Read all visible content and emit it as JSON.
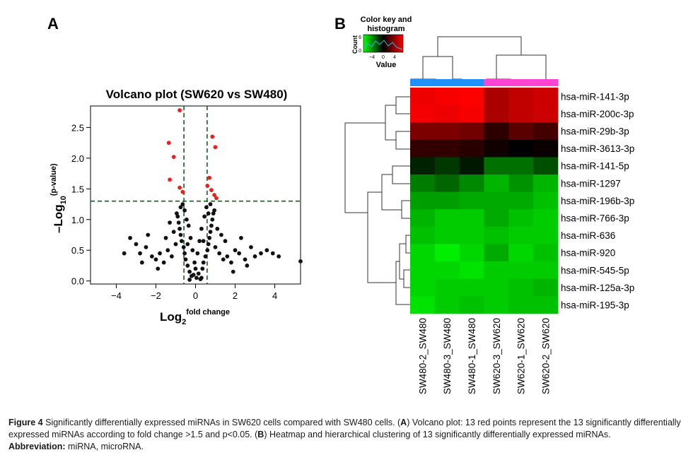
{
  "panel_labels": {
    "a": "A",
    "b": "B"
  },
  "colors": {
    "sig": "#e8201e",
    "nonsig": "#111111",
    "threshold_line": "#1e5a1e",
    "sw480_bar": "#1e90ff",
    "sw620_bar": "#ff44d4"
  },
  "caption": {
    "figure_label": "Figure 4",
    "line1_text": "Significantly differentially expressed miRNAs in SW620 cells compared with SW480 cells. (",
    "line1_a": "A",
    "line1_rest": ") Volcano plot: 13 red points represent the 13 significantly differentially",
    "line2_text": "expressed miRNAs according to fold change >1.5 and p<0.05. (",
    "line2_b": "B",
    "line2_rest": ") Heatmap and hierarchical clustering of 13 significantly differentially expressed miRNAs.",
    "abbrev_label": "Abbreviation:",
    "abbrev_text": "miRNA, microRNA."
  },
  "chart_data": [
    {
      "type": "scatter",
      "title": "Volcano plot (SW620 vs SW480)",
      "xlabel_main": "Log",
      "xlabel_sub": "2",
      "xlabel_sup": "fold change",
      "ylabel_main": "–Log",
      "ylabel_sub": "10",
      "ylabel_sup": "(p-value)",
      "xlim": [
        -5.3,
        5.3
      ],
      "ylim": [
        -0.05,
        2.85
      ],
      "xticks": [
        -4,
        -2,
        0,
        2,
        4
      ],
      "yticks": [
        0.0,
        0.5,
        1.0,
        1.5,
        2.0,
        2.5
      ],
      "ytick_labels": [
        "0.0",
        "0.5",
        "1.0",
        "1.5",
        "2.0",
        "2.5"
      ],
      "threshold_x": [
        -0.585,
        0.585
      ],
      "threshold_y": 1.3,
      "significant_points": [
        {
          "x": -0.8,
          "y": 2.78
        },
        {
          "x": -1.35,
          "y": 2.25
        },
        {
          "x": -1.1,
          "y": 2.02
        },
        {
          "x": -1.3,
          "y": 1.65
        },
        {
          "x": -0.8,
          "y": 1.52
        },
        {
          "x": 0.85,
          "y": 2.35
        },
        {
          "x": 1.0,
          "y": 2.18
        },
        {
          "x": 0.7,
          "y": 1.68
        },
        {
          "x": 0.8,
          "y": 1.48
        },
        {
          "x": 0.95,
          "y": 1.4
        },
        {
          "x": 0.6,
          "y": 1.55
        },
        {
          "x": -0.65,
          "y": 1.45
        },
        {
          "x": 1.05,
          "y": 1.35
        }
      ],
      "nonsignificant_points": [
        {
          "x": 0.05,
          "y": 0.05
        },
        {
          "x": -0.1,
          "y": 0.1
        },
        {
          "x": 0.15,
          "y": 0.12
        },
        {
          "x": -0.2,
          "y": 0.08
        },
        {
          "x": 0.25,
          "y": 0.03
        },
        {
          "x": -0.3,
          "y": 0.15
        },
        {
          "x": 0.35,
          "y": 0.2
        },
        {
          "x": -0.4,
          "y": 0.25
        },
        {
          "x": 0.4,
          "y": 0.3
        },
        {
          "x": -0.5,
          "y": 0.35
        },
        {
          "x": 0.5,
          "y": 0.4
        },
        {
          "x": -0.55,
          "y": 0.45
        },
        {
          "x": 0.6,
          "y": 0.5
        },
        {
          "x": -0.6,
          "y": 0.55
        },
        {
          "x": 0.65,
          "y": 0.6
        },
        {
          "x": -0.7,
          "y": 0.65
        },
        {
          "x": 0.7,
          "y": 0.7
        },
        {
          "x": -0.75,
          "y": 0.75
        },
        {
          "x": 0.75,
          "y": 0.8
        },
        {
          "x": -0.8,
          "y": 0.85
        },
        {
          "x": 0.8,
          "y": 0.9
        },
        {
          "x": -0.85,
          "y": 0.95
        },
        {
          "x": 0.85,
          "y": 1.0
        },
        {
          "x": -0.9,
          "y": 1.05
        },
        {
          "x": 0.9,
          "y": 1.1
        },
        {
          "x": -0.55,
          "y": 1.15
        },
        {
          "x": 0.55,
          "y": 1.2
        },
        {
          "x": -0.45,
          "y": 1.0
        },
        {
          "x": 0.45,
          "y": 1.05
        },
        {
          "x": -0.35,
          "y": 0.9
        },
        {
          "x": 0.3,
          "y": 0.85
        },
        {
          "x": -0.25,
          "y": 0.7
        },
        {
          "x": 0.2,
          "y": 0.65
        },
        {
          "x": -0.15,
          "y": 0.5
        },
        {
          "x": 0.1,
          "y": 0.45
        },
        {
          "x": -0.05,
          "y": 0.3
        },
        {
          "x": 0.0,
          "y": 0.2
        },
        {
          "x": -1.0,
          "y": 0.6
        },
        {
          "x": 1.0,
          "y": 0.55
        },
        {
          "x": -1.2,
          "y": 0.4
        },
        {
          "x": 1.2,
          "y": 0.45
        },
        {
          "x": -1.4,
          "y": 0.5
        },
        {
          "x": 1.4,
          "y": 0.35
        },
        {
          "x": -1.6,
          "y": 0.3
        },
        {
          "x": 1.6,
          "y": 0.4
        },
        {
          "x": -1.8,
          "y": 0.45
        },
        {
          "x": 1.8,
          "y": 0.3
        },
        {
          "x": -2.0,
          "y": 0.35
        },
        {
          "x": 2.0,
          "y": 0.5
        },
        {
          "x": -2.2,
          "y": 0.4
        },
        {
          "x": 2.2,
          "y": 0.45
        },
        {
          "x": -2.5,
          "y": 0.55
        },
        {
          "x": 2.5,
          "y": 0.35
        },
        {
          "x": -2.8,
          "y": 0.45
        },
        {
          "x": 2.8,
          "y": 0.55
        },
        {
          "x": -3.0,
          "y": 0.6
        },
        {
          "x": 3.0,
          "y": 0.4
        },
        {
          "x": -3.3,
          "y": 0.7
        },
        {
          "x": 3.3,
          "y": 0.45
        },
        {
          "x": -3.6,
          "y": 0.45
        },
        {
          "x": 3.6,
          "y": 0.5
        },
        {
          "x": 3.9,
          "y": 0.45
        },
        {
          "x": 4.2,
          "y": 0.4
        },
        {
          "x": 5.3,
          "y": 0.32
        },
        {
          "x": -1.1,
          "y": 0.8
        },
        {
          "x": 1.1,
          "y": 0.85
        },
        {
          "x": -1.3,
          "y": 0.95
        },
        {
          "x": 1.3,
          "y": 0.75
        },
        {
          "x": -1.5,
          "y": 0.7
        },
        {
          "x": 1.5,
          "y": 0.65
        },
        {
          "x": -0.95,
          "y": 1.1
        },
        {
          "x": 0.95,
          "y": 1.15
        },
        {
          "x": -0.75,
          "y": 1.2
        },
        {
          "x": 0.75,
          "y": 1.25
        },
        {
          "x": -0.65,
          "y": 1.25
        },
        {
          "x": 0.65,
          "y": 1.1
        },
        {
          "x": -2.4,
          "y": 0.75
        },
        {
          "x": 2.3,
          "y": 0.7
        },
        {
          "x": -1.9,
          "y": 0.2
        },
        {
          "x": 1.9,
          "y": 0.15
        },
        {
          "x": -0.3,
          "y": 0.02
        },
        {
          "x": 0.3,
          "y": 0.05
        },
        {
          "x": -0.4,
          "y": 0.6
        },
        {
          "x": 0.4,
          "y": 0.65
        },
        {
          "x": -2.7,
          "y": 0.3
        },
        {
          "x": 2.6,
          "y": 0.25
        }
      ]
    },
    {
      "type": "heatmap",
      "colorkey_title_line1": "Color key and",
      "colorkey_title_line2": "histogram",
      "colorkey_ylabel": "Count",
      "colorkey_xlabel": "Value",
      "colorkey_ticks": [
        "−4",
        "0",
        "4"
      ],
      "colorkey_yticks": [
        "0",
        "6"
      ],
      "colorkey_colors": [
        "#00ff00",
        "#000000",
        "#ff0000"
      ],
      "rows": [
        "hsa-miR-141-3p",
        "hsa-miR-200c-3p",
        "hsa-miR-29b-3p",
        "hsa-miR-3613-3p",
        "hsa-miR-141-5p",
        "hsa-miR-1297",
        "hsa-miR-196b-3p",
        "hsa-miR-766-3p",
        "hsa-miR-636",
        "hsa-miR-920",
        "hsa-miR-545-5p",
        "hsa-miR-125a-3p",
        "hsa-miR-195-3p"
      ],
      "columns": [
        "SW480-2_SW480",
        "SW480-3_SW480",
        "SW480-1_SW480",
        "SW620-3_SW620",
        "SW620-1_SW620",
        "SW620-2_SW620"
      ],
      "column_groups": [
        "SW480",
        "SW480",
        "SW480",
        "SW620",
        "SW620",
        "SW620"
      ],
      "values": [
        [
          4.2,
          4.4,
          4.6,
          3.0,
          3.4,
          3.6
        ],
        [
          4.3,
          4.2,
          4.4,
          3.0,
          3.4,
          3.6
        ],
        [
          2.2,
          2.2,
          2.0,
          0.8,
          1.6,
          1.2
        ],
        [
          0.9,
          0.9,
          0.7,
          0.3,
          0.0,
          0.2
        ],
        [
          -0.6,
          -1.0,
          -0.4,
          -2.0,
          -2.0,
          -1.4
        ],
        [
          -2.2,
          -1.8,
          -2.4,
          -3.2,
          -2.6,
          -3.2
        ],
        [
          -2.8,
          -2.8,
          -3.0,
          -3.0,
          -3.0,
          -3.4
        ],
        [
          -3.2,
          -3.6,
          -3.6,
          -3.0,
          -3.4,
          -3.6
        ],
        [
          -3.4,
          -3.6,
          -3.6,
          -3.4,
          -3.6,
          -3.6
        ],
        [
          -3.8,
          -4.2,
          -3.8,
          -3.0,
          -3.8,
          -3.4
        ],
        [
          -3.8,
          -3.8,
          -4.0,
          -3.6,
          -3.6,
          -3.6
        ],
        [
          -3.8,
          -3.6,
          -3.6,
          -3.6,
          -3.4,
          -3.2
        ],
        [
          -4.0,
          -3.6,
          -3.4,
          -3.6,
          -3.4,
          -3.4
        ]
      ]
    }
  ]
}
